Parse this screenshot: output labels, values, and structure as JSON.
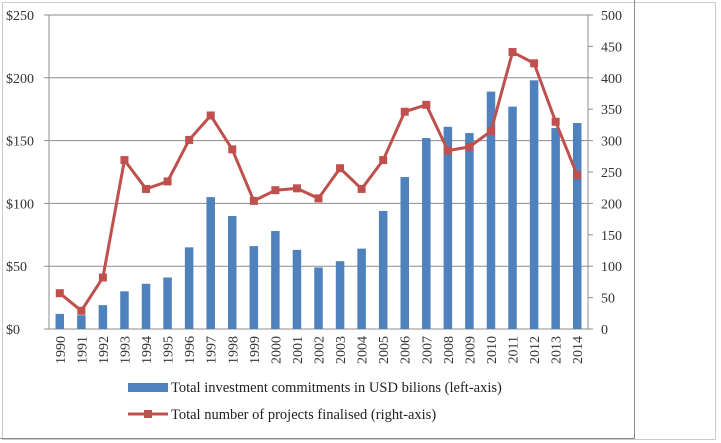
{
  "chart_data": {
    "type": "bar+line",
    "title": "",
    "categories": [
      "1990",
      "1991",
      "1992",
      "1993",
      "1994",
      "1995",
      "1996",
      "1997",
      "1998",
      "1999",
      "2000",
      "2001",
      "2002",
      "2003",
      "2004",
      "2005",
      "2006",
      "2007",
      "2008",
      "2009",
      "2010",
      "2011",
      "2012",
      "2013",
      "2014"
    ],
    "series": [
      {
        "name": "Total investment commitments in USD bilions (left-axis)",
        "type": "bar",
        "axis": "left",
        "color": "#4F81BD",
        "values": [
          12,
          11,
          19,
          30,
          36,
          41,
          65,
          105,
          90,
          66,
          78,
          63,
          49,
          54,
          64,
          94,
          121,
          152,
          161,
          156,
          189,
          177,
          198,
          160,
          164
        ]
      },
      {
        "name": "Total number of projects finalised (right-axis)",
        "type": "line",
        "axis": "right",
        "color": "#C0504D",
        "marker": "square",
        "values": [
          57,
          29,
          82,
          269,
          223,
          235,
          301,
          340,
          286,
          204,
          221,
          224,
          208,
          256,
          223,
          269,
          346,
          357,
          284,
          290,
          315,
          441,
          423,
          330,
          245
        ]
      }
    ],
    "left_axis": {
      "ylim": [
        0,
        250
      ],
      "ticks": [
        0,
        50,
        100,
        150,
        200,
        250
      ],
      "tick_labels": [
        "$0",
        "$50",
        "$100",
        "$150",
        "$200",
        "$250"
      ]
    },
    "right_axis": {
      "ylim": [
        0,
        500
      ],
      "ticks": [
        0,
        50,
        100,
        150,
        200,
        250,
        300,
        350,
        400,
        450,
        500
      ],
      "tick_labels": [
        "0",
        "50",
        "100",
        "150",
        "200",
        "250",
        "300",
        "350",
        "400",
        "450",
        "500"
      ]
    },
    "xlabel": "",
    "ylabel": "",
    "grid": "horizontal gridlines at left-axis major ticks",
    "legend_position": "bottom"
  },
  "legend": {
    "items": [
      "Total investment commitments in USD bilions (left-axis)",
      "Total number of projects finalised (right-axis)"
    ]
  }
}
